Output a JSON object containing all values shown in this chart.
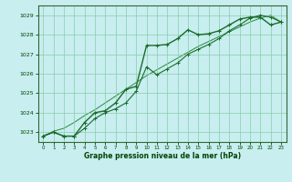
{
  "bg_color": "#c8eef0",
  "grid_color": "#88ccaa",
  "line_color1": "#1a6b2a",
  "line_color2": "#1a6b2a",
  "line_color3": "#2a8a3a",
  "xlabel": "Graphe pression niveau de la mer (hPa)",
  "xlabel_color": "#004400",
  "ylim": [
    1022.5,
    1029.5
  ],
  "xlim": [
    -0.5,
    23.5
  ],
  "yticks": [
    1023,
    1024,
    1025,
    1026,
    1027,
    1028,
    1029
  ],
  "xticks": [
    0,
    1,
    2,
    3,
    4,
    5,
    6,
    7,
    8,
    9,
    10,
    11,
    12,
    13,
    14,
    15,
    16,
    17,
    18,
    19,
    20,
    21,
    22,
    23
  ],
  "series1_x": [
    0,
    1,
    2,
    3,
    4,
    5,
    6,
    7,
    8,
    9,
    10,
    11,
    12,
    13,
    14,
    15,
    16,
    17,
    18,
    19,
    20,
    21,
    22,
    23
  ],
  "series1_y": [
    1022.8,
    1023.0,
    1022.8,
    1022.8,
    1023.5,
    1024.0,
    1024.1,
    1024.5,
    1025.2,
    1025.35,
    1027.45,
    1027.45,
    1027.5,
    1027.8,
    1028.25,
    1028.0,
    1028.05,
    1028.2,
    1028.5,
    1028.8,
    1028.9,
    1028.9,
    1028.5,
    1028.65
  ],
  "series2_x": [
    0,
    1,
    2,
    3,
    4,
    5,
    6,
    7,
    8,
    9,
    10,
    11,
    12,
    13,
    14,
    15,
    16,
    17,
    18,
    19,
    20,
    21,
    22,
    23
  ],
  "series2_y": [
    1022.8,
    1023.0,
    1022.8,
    1022.8,
    1023.2,
    1023.7,
    1024.0,
    1024.2,
    1024.5,
    1025.1,
    1026.35,
    1025.95,
    1026.25,
    1026.55,
    1027.0,
    1027.25,
    1027.5,
    1027.8,
    1028.2,
    1028.5,
    1028.85,
    1029.0,
    1028.9,
    1028.65
  ],
  "series3_x": [
    0,
    1,
    2,
    3,
    4,
    5,
    6,
    7,
    8,
    9,
    10,
    11,
    12,
    13,
    14,
    15,
    16,
    17,
    18,
    19,
    20,
    21,
    22,
    23
  ],
  "series3_y": [
    1022.8,
    1023.05,
    1023.2,
    1023.5,
    1023.85,
    1024.15,
    1024.5,
    1024.85,
    1025.2,
    1025.55,
    1025.9,
    1026.2,
    1026.5,
    1026.8,
    1027.1,
    1027.4,
    1027.65,
    1027.9,
    1028.15,
    1028.4,
    1028.65,
    1028.85,
    1029.0,
    1028.65
  ]
}
